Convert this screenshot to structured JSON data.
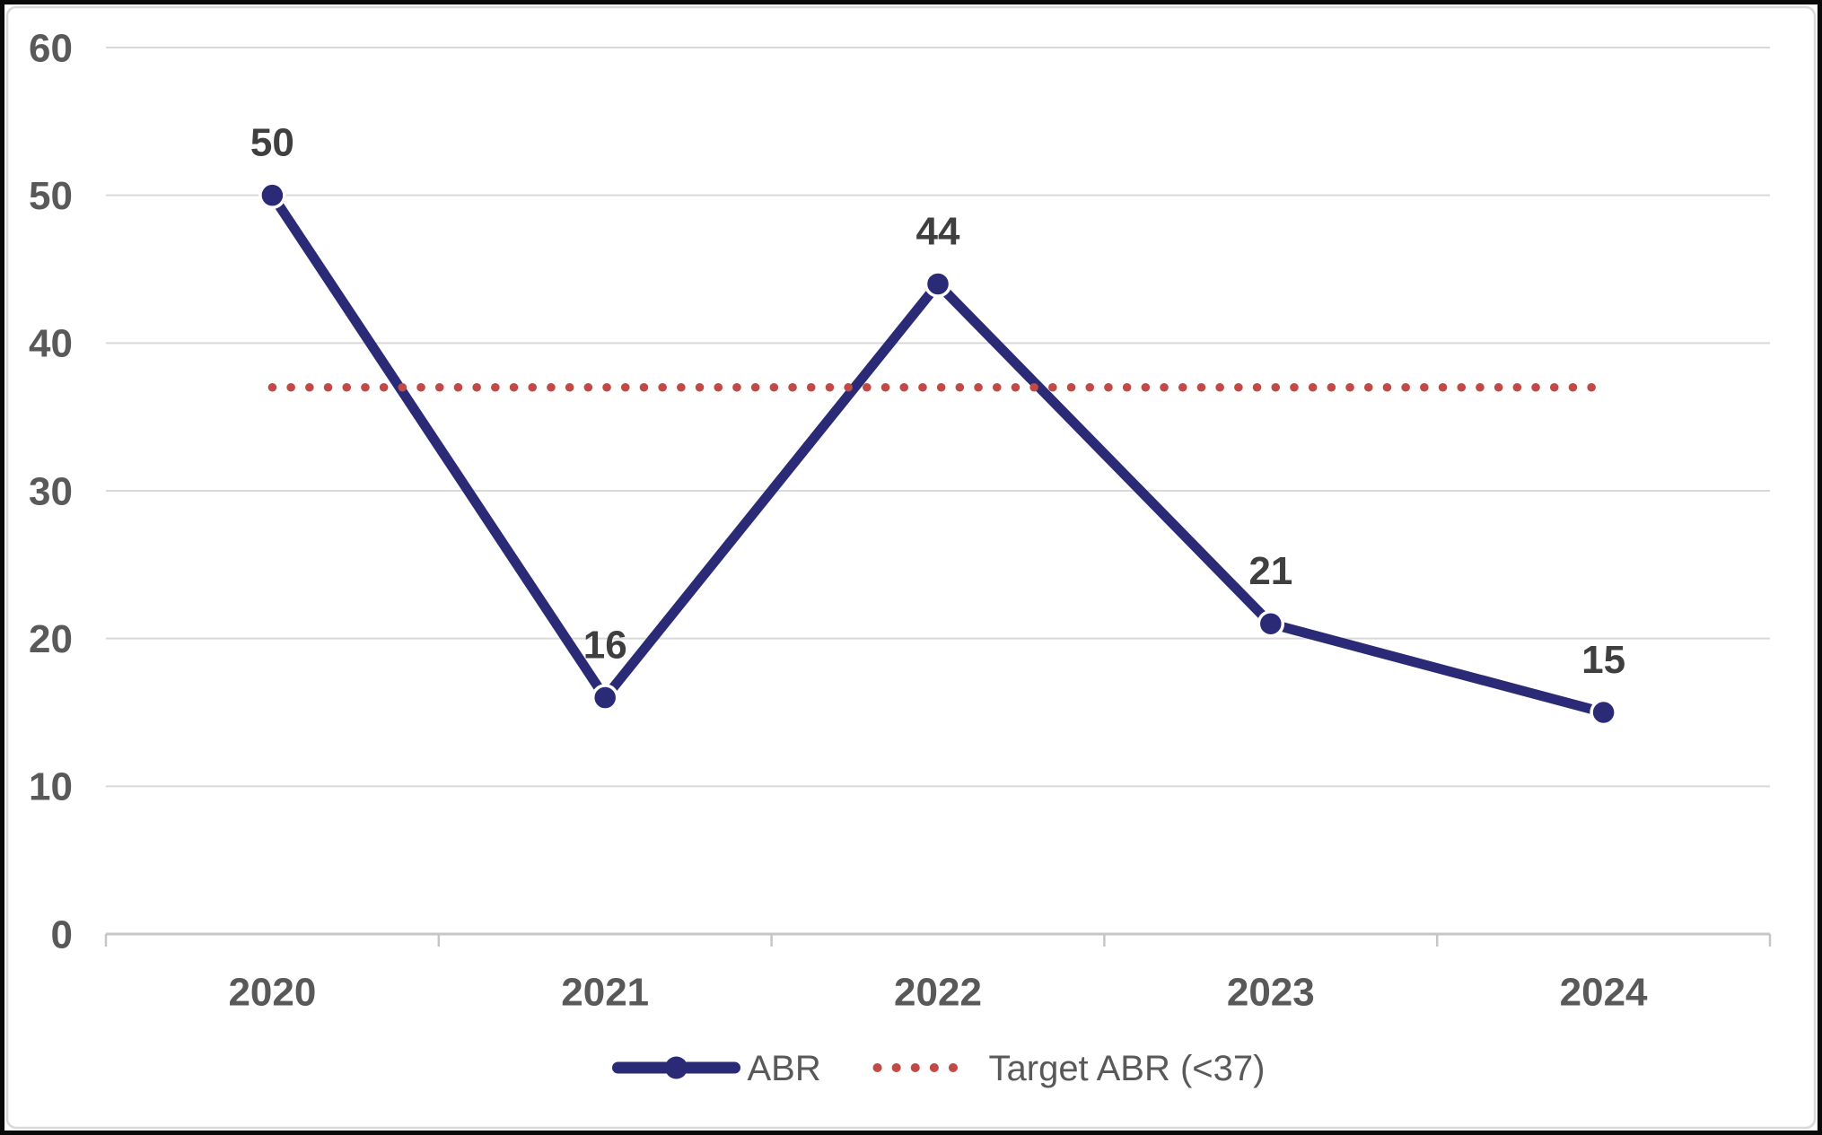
{
  "chart_data": {
    "type": "line",
    "categories": [
      "2020",
      "2021",
      "2022",
      "2023",
      "2024"
    ],
    "series": [
      {
        "name": "ABR",
        "values": [
          50,
          16,
          44,
          21,
          15
        ],
        "data_labels": [
          "50",
          "16",
          "44",
          "21",
          "15"
        ],
        "color": "#2b2a76",
        "style": "solid-with-round-markers"
      },
      {
        "name": "Target ABR (<37)",
        "values": [
          37,
          37,
          37,
          37,
          37
        ],
        "color": "#c14a47",
        "style": "dotted"
      }
    ],
    "title": "",
    "xlabel": "",
    "ylabel": "",
    "ylim": [
      0,
      60
    ],
    "yticks": [
      "0",
      "10",
      "20",
      "30",
      "40",
      "50",
      "60"
    ],
    "grid": "horizontal",
    "legend_position": "bottom-center"
  },
  "colors": {
    "series_line": "#2b2a76",
    "target_line": "#c14a47",
    "gridline": "#d9d9d9",
    "axis_line": "#c6c6c6",
    "tick_label": "#595959",
    "data_label": "#3f3f3f",
    "legend_text": "#595959",
    "chart_border": "#d9d9d9",
    "outer_frame": "#0a0a0a",
    "background": "#ffffff",
    "marker_ring": "#ffffff"
  }
}
